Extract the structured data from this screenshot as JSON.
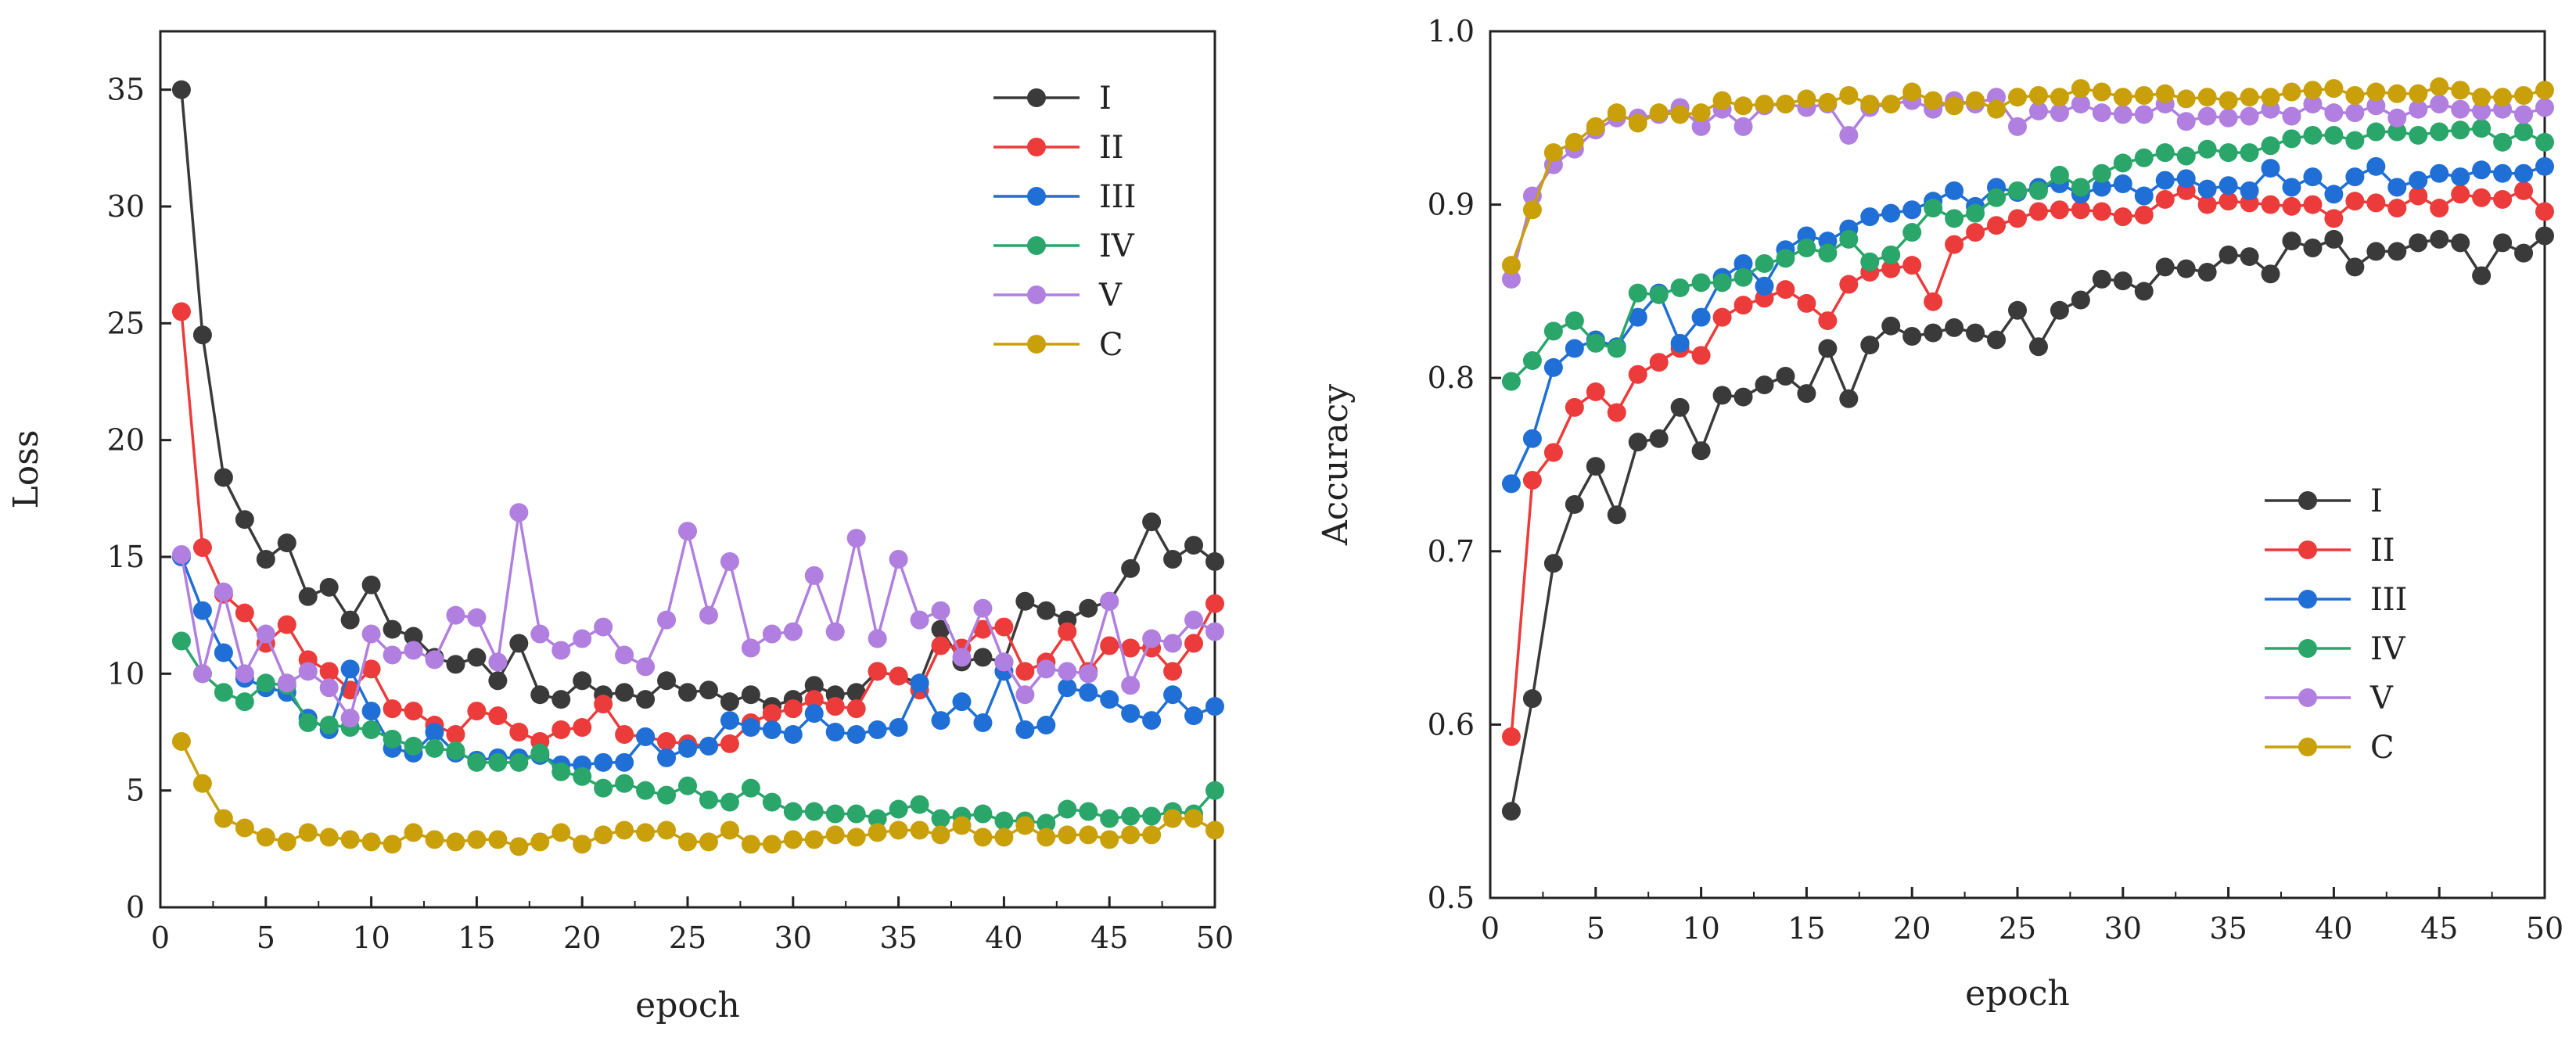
{
  "chart_data": [
    {
      "type": "line",
      "xlabel": "epoch",
      "ylabel": "Loss",
      "xlim": [
        0,
        50
      ],
      "ylim": [
        0,
        37.5
      ],
      "xticks": [
        0,
        5,
        10,
        15,
        20,
        25,
        30,
        35,
        40,
        45,
        50
      ],
      "yticks": [
        0,
        5,
        10,
        15,
        20,
        25,
        30,
        35
      ],
      "grid": false,
      "legend_position": "top-right",
      "x": [
        1,
        2,
        3,
        4,
        5,
        6,
        7,
        8,
        9,
        10,
        11,
        12,
        13,
        14,
        15,
        16,
        17,
        18,
        19,
        20,
        21,
        22,
        23,
        24,
        25,
        26,
        27,
        28,
        29,
        30,
        31,
        32,
        33,
        34,
        35,
        36,
        37,
        38,
        39,
        40,
        41,
        42,
        43,
        44,
        45,
        46,
        47,
        48,
        49,
        50
      ],
      "series": [
        {
          "name": "I",
          "color": "#3a3a3a",
          "values": [
            35,
            24.5,
            18.4,
            16.6,
            14.9,
            15.6,
            13.3,
            13.7,
            12.3,
            13.8,
            11.9,
            11.6,
            10.7,
            10.4,
            10.7,
            9.7,
            11.3,
            9.1,
            8.9,
            9.7,
            9.1,
            9.2,
            8.9,
            9.7,
            9.2,
            9.3,
            8.8,
            9.1,
            8.6,
            8.9,
            9.5,
            9.1,
            9.2,
            10.1,
            9.9,
            9.6,
            11.9,
            10.5,
            10.7,
            10.5,
            13.1,
            12.7,
            12.3,
            12.8,
            13.1,
            14.5,
            16.5,
            14.9,
            15.5,
            14.8
          ]
        },
        {
          "name": "II",
          "color": "#ec3b3b",
          "values": [
            25.5,
            15.4,
            13.4,
            12.6,
            11.3,
            12.1,
            10.6,
            10.1,
            9.3,
            10.2,
            8.5,
            8.4,
            7.8,
            7.4,
            8.4,
            8.2,
            7.5,
            7.1,
            7.6,
            7.7,
            8.7,
            7.4,
            7.3,
            7.1,
            7.0,
            6.9,
            7.0,
            7.9,
            8.3,
            8.5,
            8.9,
            8.6,
            8.5,
            10.1,
            9.9,
            9.3,
            11.2,
            11.1,
            11.9,
            12,
            10.1,
            10.5,
            11.8,
            10.1,
            11.2,
            11.1,
            11.1,
            10.1,
            11.3,
            13
          ]
        },
        {
          "name": "III",
          "color": "#1f6fd6",
          "values": [
            15,
            12.7,
            10.9,
            9.8,
            9.4,
            9.2,
            8.1,
            7.6,
            10.2,
            8.4,
            6.8,
            6.6,
            7.5,
            6.6,
            6.3,
            6.4,
            6.4,
            6.5,
            6.1,
            6.1,
            6.2,
            6.2,
            7.3,
            6.4,
            6.8,
            6.9,
            8.0,
            7.7,
            7.6,
            7.4,
            8.3,
            7.5,
            7.4,
            7.6,
            7.7,
            9.6,
            8.0,
            8.8,
            7.9,
            10.1,
            7.6,
            7.8,
            9.4,
            9.2,
            8.9,
            8.3,
            8.0,
            9.1,
            8.2,
            8.6
          ]
        },
        {
          "name": "IV",
          "color": "#2aa66b",
          "values": [
            11.4,
            10.0,
            9.2,
            8.8,
            9.6,
            9.5,
            7.9,
            7.8,
            7.7,
            7.6,
            7.2,
            6.9,
            6.8,
            6.7,
            6.2,
            6.2,
            6.2,
            6.6,
            5.8,
            5.6,
            5.1,
            5.3,
            5.0,
            4.8,
            5.2,
            4.6,
            4.5,
            5.1,
            4.5,
            4.1,
            4.1,
            4.0,
            4.0,
            3.8,
            4.2,
            4.4,
            3.8,
            3.9,
            4.0,
            3.7,
            3.7,
            3.6,
            4.2,
            4.1,
            3.8,
            3.9,
            3.9,
            4.1,
            4.0,
            5.0
          ]
        },
        {
          "name": "V",
          "color": "#b07fe0",
          "values": [
            15.1,
            10.0,
            13.5,
            10.0,
            11.7,
            9.6,
            10.1,
            9.4,
            8.1,
            11.7,
            10.8,
            11.0,
            10.6,
            12.5,
            12.4,
            10.5,
            16.9,
            11.7,
            11.0,
            11.5,
            12.0,
            10.8,
            10.3,
            12.3,
            16.1,
            12.5,
            14.8,
            11.1,
            11.7,
            11.8,
            14.2,
            11.8,
            15.8,
            11.5,
            14.9,
            12.3,
            12.7,
            10.7,
            12.8,
            10.5,
            9.1,
            10.2,
            10.1,
            10.0,
            13.1,
            9.5,
            11.5,
            11.3,
            12.3,
            11.8
          ]
        },
        {
          "name": "C",
          "color": "#c9a00a",
          "values": [
            7.1,
            5.3,
            3.8,
            3.4,
            3.0,
            2.8,
            3.2,
            3.0,
            2.9,
            2.8,
            2.7,
            3.2,
            2.9,
            2.8,
            2.9,
            2.9,
            2.6,
            2.8,
            3.2,
            2.7,
            3.1,
            3.3,
            3.2,
            3.3,
            2.8,
            2.8,
            3.3,
            2.7,
            2.7,
            2.9,
            2.9,
            3.1,
            3.0,
            3.2,
            3.3,
            3.3,
            3.1,
            3.5,
            3.0,
            3.0,
            3.5,
            3.0,
            3.1,
            3.1,
            2.9,
            3.1,
            3.1,
            3.8,
            3.8,
            3.3
          ]
        }
      ]
    },
    {
      "type": "line",
      "xlabel": "epoch",
      "ylabel": "Accuracy",
      "xlim": [
        0,
        50
      ],
      "ylim": [
        0.5,
        1.0
      ],
      "xticks": [
        0,
        5,
        10,
        15,
        20,
        25,
        30,
        35,
        40,
        45,
        50
      ],
      "yticks": [
        0.5,
        0.6,
        0.7,
        0.8,
        0.9,
        1.0
      ],
      "grid": false,
      "legend_position": "bottom-right",
      "x": [
        1,
        2,
        3,
        4,
        5,
        6,
        7,
        8,
        9,
        10,
        11,
        12,
        13,
        14,
        15,
        16,
        17,
        18,
        19,
        20,
        21,
        22,
        23,
        24,
        25,
        26,
        27,
        28,
        29,
        30,
        31,
        32,
        33,
        34,
        35,
        36,
        37,
        38,
        39,
        40,
        41,
        42,
        43,
        44,
        45,
        46,
        47,
        48,
        49,
        50
      ],
      "series": [
        {
          "name": "I",
          "color": "#3a3a3a",
          "values": [
            0.55,
            0.615,
            0.693,
            0.727,
            0.749,
            0.721,
            0.763,
            0.765,
            0.783,
            0.758,
            0.79,
            0.789,
            0.796,
            0.801,
            0.791,
            0.817,
            0.788,
            0.819,
            0.83,
            0.824,
            0.826,
            0.829,
            0.826,
            0.822,
            0.839,
            0.818,
            0.839,
            0.845,
            0.857,
            0.856,
            0.85,
            0.864,
            0.863,
            0.861,
            0.871,
            0.87,
            0.86,
            0.879,
            0.875,
            0.88,
            0.864,
            0.873,
            0.873,
            0.878,
            0.88,
            0.878,
            0.859,
            0.878,
            0.872,
            0.882
          ]
        },
        {
          "name": "II",
          "color": "#ec3b3b",
          "values": [
            0.593,
            0.741,
            0.757,
            0.783,
            0.792,
            0.78,
            0.802,
            0.809,
            0.817,
            0.813,
            0.835,
            0.842,
            0.846,
            0.851,
            0.843,
            0.833,
            0.854,
            0.861,
            0.863,
            0.865,
            0.844,
            0.877,
            0.884,
            0.888,
            0.892,
            0.896,
            0.897,
            0.897,
            0.896,
            0.893,
            0.894,
            0.903,
            0.908,
            0.9,
            0.902,
            0.901,
            0.9,
            0.899,
            0.9,
            0.892,
            0.902,
            0.901,
            0.898,
            0.905,
            0.898,
            0.906,
            0.904,
            0.903,
            0.908,
            0.896
          ]
        },
        {
          "name": "III",
          "color": "#1f6fd6",
          "values": [
            0.739,
            0.765,
            0.806,
            0.817,
            0.822,
            0.818,
            0.835,
            0.849,
            0.82,
            0.835,
            0.858,
            0.866,
            0.853,
            0.874,
            0.882,
            0.879,
            0.886,
            0.893,
            0.895,
            0.897,
            0.902,
            0.908,
            0.899,
            0.91,
            0.907,
            0.91,
            0.912,
            0.906,
            0.91,
            0.912,
            0.905,
            0.914,
            0.915,
            0.909,
            0.911,
            0.908,
            0.921,
            0.91,
            0.916,
            0.906,
            0.916,
            0.922,
            0.91,
            0.914,
            0.918,
            0.916,
            0.92,
            0.918,
            0.918,
            0.922
          ]
        },
        {
          "name": "IV",
          "color": "#2aa66b",
          "values": [
            0.798,
            0.81,
            0.827,
            0.833,
            0.82,
            0.817,
            0.849,
            0.848,
            0.852,
            0.855,
            0.855,
            0.858,
            0.866,
            0.869,
            0.875,
            0.872,
            0.88,
            0.867,
            0.871,
            0.884,
            0.898,
            0.892,
            0.895,
            0.904,
            0.908,
            0.908,
            0.917,
            0.91,
            0.918,
            0.924,
            0.927,
            0.93,
            0.928,
            0.932,
            0.93,
            0.93,
            0.934,
            0.938,
            0.94,
            0.94,
            0.937,
            0.942,
            0.942,
            0.94,
            0.942,
            0.943,
            0.944,
            0.936,
            0.942,
            0.936
          ]
        },
        {
          "name": "V",
          "color": "#b07fe0",
          "values": [
            0.857,
            0.905,
            0.923,
            0.932,
            0.943,
            0.95,
            0.95,
            0.952,
            0.956,
            0.945,
            0.955,
            0.945,
            0.957,
            0.958,
            0.956,
            0.958,
            0.94,
            0.956,
            0.958,
            0.96,
            0.955,
            0.96,
            0.958,
            0.962,
            0.945,
            0.954,
            0.953,
            0.958,
            0.953,
            0.952,
            0.952,
            0.958,
            0.948,
            0.951,
            0.95,
            0.951,
            0.955,
            0.951,
            0.958,
            0.953,
            0.953,
            0.957,
            0.95,
            0.955,
            0.958,
            0.955,
            0.954,
            0.955,
            0.952,
            0.956
          ]
        },
        {
          "name": "C",
          "color": "#c9a00a",
          "values": [
            0.865,
            0.897,
            0.93,
            0.936,
            0.945,
            0.953,
            0.947,
            0.953,
            0.952,
            0.953,
            0.96,
            0.957,
            0.958,
            0.958,
            0.961,
            0.959,
            0.963,
            0.958,
            0.958,
            0.965,
            0.96,
            0.957,
            0.96,
            0.955,
            0.962,
            0.963,
            0.962,
            0.967,
            0.965,
            0.962,
            0.963,
            0.964,
            0.961,
            0.962,
            0.96,
            0.962,
            0.962,
            0.965,
            0.966,
            0.967,
            0.963,
            0.965,
            0.964,
            0.964,
            0.968,
            0.966,
            0.962,
            0.962,
            0.963,
            0.966
          ]
        }
      ]
    }
  ]
}
